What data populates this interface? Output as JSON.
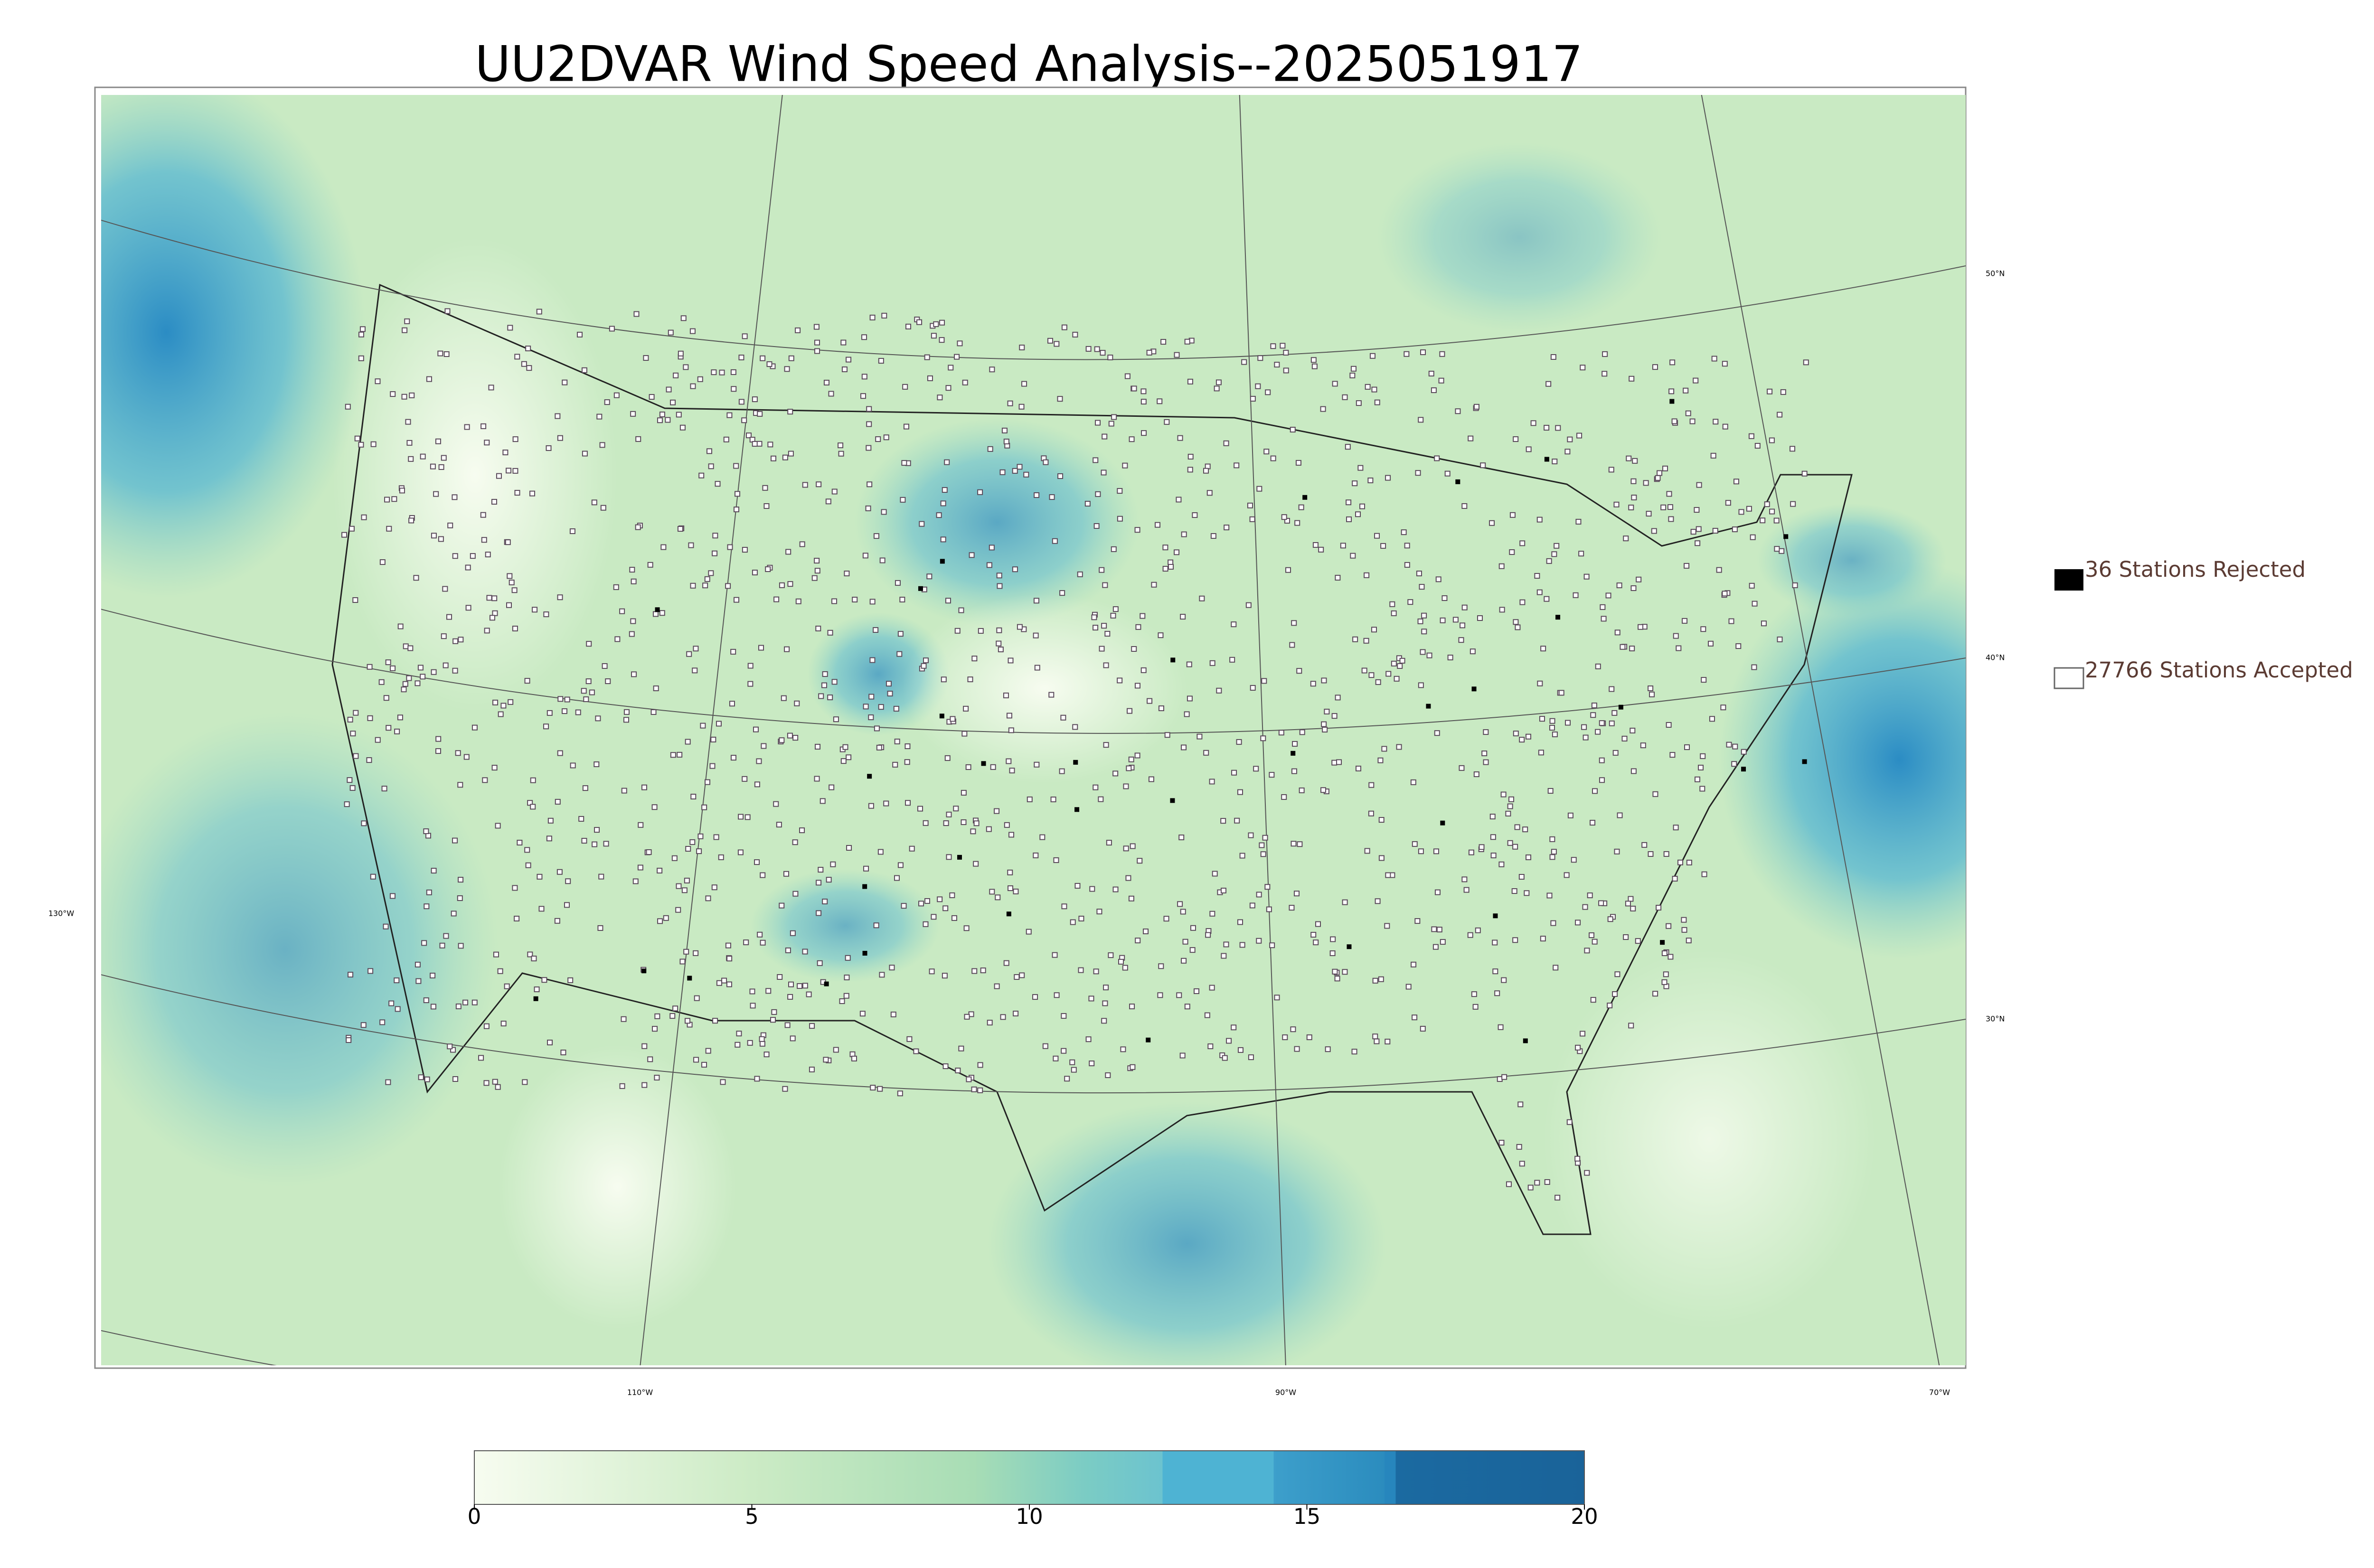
{
  "map": {
    "title": "UU2DVAR Wind Speed Analysis--2025051917",
    "legend": [
      "36 Stations Rejected",
      "27766 Stations Accepted"
    ],
    "latitude_labels": [
      "50°N",
      "40°N",
      "30°N"
    ],
    "longitude_labels": [
      "130°W",
      "110°W",
      "90°W",
      "70°W"
    ],
    "colorbar": {
      "range": [
        0,
        20
      ],
      "ticks": [
        0,
        5,
        10,
        15,
        20
      ]
    }
  }
}
